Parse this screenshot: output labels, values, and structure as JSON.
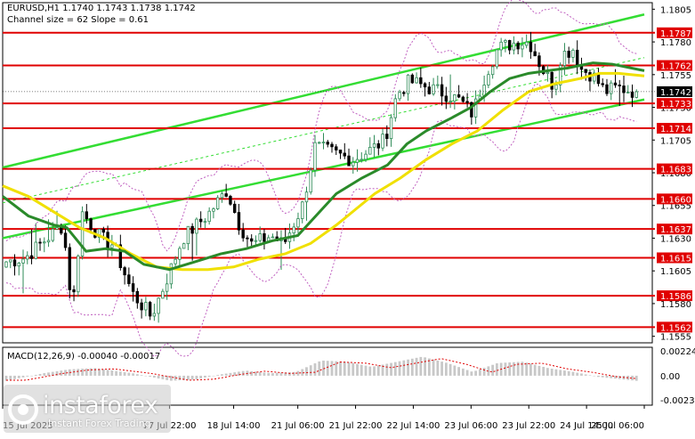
{
  "header": {
    "symbol_line": "EURUSD,H1  1.1740 1.1743 1.1738 1.1742",
    "channel_line": "Channel size = 62 Slope = 0.61"
  },
  "macd": {
    "label": "MACD(12,26,9) -0.00040 -0.00017",
    "ticks": [
      "0.00224",
      "0.00",
      "-0.00232"
    ]
  },
  "logo": {
    "name": "instaforex",
    "tagline": "Instant Forex Trading"
  },
  "colors": {
    "bull": "#2e8b57",
    "bear": "#000000",
    "level_line": "#e00000",
    "channel": "#33dd33",
    "ma_fast": "#2a8a2a",
    "ma_slow": "#f0e000",
    "bollinger": "#c060c0",
    "macd_hist": "#c8c8c8",
    "macd_signal": "#e00000"
  },
  "chart_data": {
    "type": "candlestick",
    "symbol": "EURUSD",
    "timeframe": "H1",
    "last_price": 1.1742,
    "price_range": [
      1.155,
      1.181
    ],
    "price_ticks": [
      1.1805,
      1.178,
      1.1755,
      1.173,
      1.1705,
      1.168,
      1.1655,
      1.163,
      1.1605,
      1.158,
      1.1555
    ],
    "price_tick_labels": [
      "1.1805",
      "1.1780",
      "1.1755",
      "1.1730",
      "1.1705",
      "1.1680",
      "1.1655",
      "1.1630",
      "1.1605",
      "1.1580",
      "1.1555"
    ],
    "levels": [
      {
        "value": 1.1787,
        "label": "1.1787"
      },
      {
        "value": 1.1762,
        "label": "1.1762"
      },
      {
        "value": 1.1733,
        "label": "1.1733"
      },
      {
        "value": 1.1714,
        "label": "1.1714"
      },
      {
        "value": 1.1683,
        "label": "1.1683"
      },
      {
        "value": 1.166,
        "label": "1.1660"
      },
      {
        "value": 1.1637,
        "label": "1.1637"
      },
      {
        "value": 1.1615,
        "label": "1.1615"
      },
      {
        "value": 1.1586,
        "label": "1.1586"
      },
      {
        "value": 1.1562,
        "label": "1.1562"
      }
    ],
    "time_labels": [
      "15 Jul 2025",
      "17 Jul 22:00",
      "18 Jul 14:00",
      "21 Jul 06:00",
      "21 Jul 22:00",
      "22 Jul 14:00",
      "23 Jul 06:00",
      "23 Jul 22:00",
      "24 Jul 14:00",
      "25 Jul 06:00"
    ],
    "time_label_frac": [
      0.0,
      0.26,
      0.36,
      0.46,
      0.55,
      0.64,
      0.73,
      0.82,
      0.91,
      1.0
    ],
    "anchors": [
      [
        0,
        1.1612
      ],
      [
        0.03,
        1.1615
      ],
      [
        0.06,
        1.1628
      ],
      [
        0.09,
        1.164
      ],
      [
        0.105,
        1.1575
      ],
      [
        0.12,
        1.165
      ],
      [
        0.15,
        1.163
      ],
      [
        0.17,
        1.1625
      ],
      [
        0.2,
        1.1588
      ],
      [
        0.23,
        1.157
      ],
      [
        0.26,
        1.1605
      ],
      [
        0.28,
        1.163
      ],
      [
        0.32,
        1.1648
      ],
      [
        0.35,
        1.1667
      ],
      [
        0.37,
        1.164
      ],
      [
        0.39,
        1.1625
      ],
      [
        0.42,
        1.1632
      ],
      [
        0.44,
        1.1625
      ],
      [
        0.47,
        1.1655
      ],
      [
        0.49,
        1.17
      ],
      [
        0.52,
        1.1695
      ],
      [
        0.55,
        1.169
      ],
      [
        0.58,
        1.1698
      ],
      [
        0.6,
        1.1705
      ],
      [
        0.62,
        1.174
      ],
      [
        0.64,
        1.175
      ],
      [
        0.67,
        1.1745
      ],
      [
        0.7,
        1.174
      ],
      [
        0.72,
        1.1735
      ],
      [
        0.74,
        1.1725
      ],
      [
        0.76,
        1.1755
      ],
      [
        0.78,
        1.1775
      ],
      [
        0.81,
        1.178
      ],
      [
        0.83,
        1.178
      ],
      [
        0.85,
        1.176
      ],
      [
        0.87,
        1.1745
      ],
      [
        0.88,
        1.177
      ],
      [
        0.9,
        1.1775
      ],
      [
        0.91,
        1.176
      ],
      [
        0.93,
        1.1755
      ],
      [
        0.95,
        1.1742
      ],
      [
        0.97,
        1.1745
      ],
      [
        1.0,
        1.1742
      ]
    ],
    "channel_upper": [
      [
        0,
        1.1684
      ],
      [
        1.0,
        1.1801
      ]
    ],
    "channel_lower": [
      [
        0,
        1.163
      ],
      [
        1.0,
        1.1736
      ]
    ],
    "channel_mid": [
      [
        0,
        1.1657
      ],
      [
        1.0,
        1.1768
      ]
    ],
    "ma_fast": [
      [
        0,
        1.1662
      ],
      [
        0.04,
        1.1647
      ],
      [
        0.08,
        1.164
      ],
      [
        0.1,
        1.1638
      ],
      [
        0.13,
        1.162
      ],
      [
        0.16,
        1.1622
      ],
      [
        0.19,
        1.162
      ],
      [
        0.22,
        1.161
      ],
      [
        0.26,
        1.1606
      ],
      [
        0.3,
        1.1612
      ],
      [
        0.34,
        1.1618
      ],
      [
        0.38,
        1.1622
      ],
      [
        0.42,
        1.1628
      ],
      [
        0.46,
        1.1632
      ],
      [
        0.49,
        1.1648
      ],
      [
        0.52,
        1.1664
      ],
      [
        0.56,
        1.1676
      ],
      [
        0.6,
        1.1686
      ],
      [
        0.63,
        1.1702
      ],
      [
        0.66,
        1.1712
      ],
      [
        0.7,
        1.1722
      ],
      [
        0.73,
        1.173
      ],
      [
        0.76,
        1.1742
      ],
      [
        0.79,
        1.1752
      ],
      [
        0.82,
        1.1756
      ],
      [
        0.85,
        1.1758
      ],
      [
        0.88,
        1.176
      ],
      [
        0.9,
        1.1762
      ],
      [
        0.92,
        1.1764
      ],
      [
        0.95,
        1.1763
      ],
      [
        1.0,
        1.1758
      ]
    ],
    "ma_slow": [
      [
        0,
        1.167
      ],
      [
        0.04,
        1.1662
      ],
      [
        0.08,
        1.165
      ],
      [
        0.12,
        1.1638
      ],
      [
        0.16,
        1.163
      ],
      [
        0.2,
        1.1618
      ],
      [
        0.24,
        1.1608
      ],
      [
        0.28,
        1.1606
      ],
      [
        0.32,
        1.1606
      ],
      [
        0.36,
        1.1608
      ],
      [
        0.4,
        1.1614
      ],
      [
        0.44,
        1.1618
      ],
      [
        0.48,
        1.1626
      ],
      [
        0.52,
        1.164
      ],
      [
        0.55,
        1.1652
      ],
      [
        0.58,
        1.1664
      ],
      [
        0.62,
        1.1676
      ],
      [
        0.66,
        1.169
      ],
      [
        0.7,
        1.1702
      ],
      [
        0.74,
        1.1712
      ],
      [
        0.78,
        1.1728
      ],
      [
        0.82,
        1.1742
      ],
      [
        0.86,
        1.1748
      ],
      [
        0.9,
        1.1752
      ],
      [
        0.93,
        1.1756
      ],
      [
        0.96,
        1.1756
      ],
      [
        1.0,
        1.1754
      ]
    ],
    "macd_range": [
      -0.00232,
      0.00224
    ],
    "macd_anchors": [
      [
        0,
        -0.0004
      ],
      [
        0.06,
        0.0002
      ],
      [
        0.1,
        0.0005
      ],
      [
        0.14,
        0.0006
      ],
      [
        0.2,
        0.0002
      ],
      [
        0.26,
        -0.0004
      ],
      [
        0.3,
        -0.0003
      ],
      [
        0.34,
        0.0001
      ],
      [
        0.38,
        0.0004
      ],
      [
        0.42,
        0.0002
      ],
      [
        0.46,
        0.0003
      ],
      [
        0.5,
        0.0012
      ],
      [
        0.54,
        0.0011
      ],
      [
        0.58,
        0.0007
      ],
      [
        0.62,
        0.0011
      ],
      [
        0.66,
        0.0015
      ],
      [
        0.7,
        0.001
      ],
      [
        0.74,
        0.0003
      ],
      [
        0.78,
        0.001
      ],
      [
        0.82,
        0.0011
      ],
      [
        0.86,
        0.0006
      ],
      [
        0.9,
        0.0003
      ],
      [
        0.94,
        -0.0001
      ],
      [
        1.0,
        -0.0004
      ]
    ]
  }
}
